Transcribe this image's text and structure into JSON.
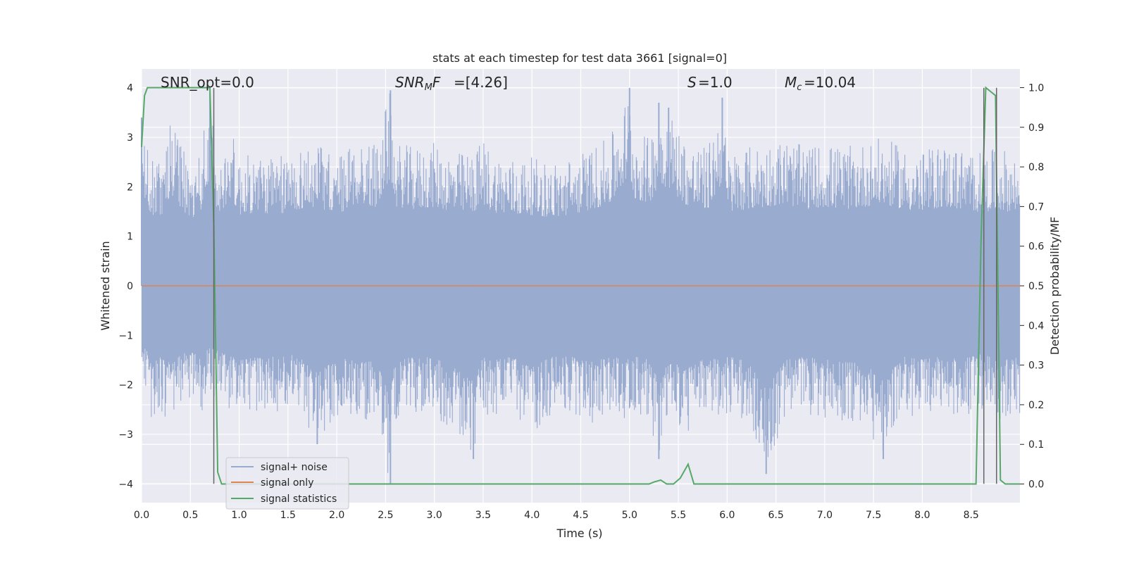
{
  "chart_data": {
    "type": "line",
    "title": "stats at each timestep for test data 3661 [signal=0]",
    "xlabel": "Time (s)",
    "ylabel_left": "Whitened strain",
    "ylabel_right": "Detection probability/MF",
    "xlim": [
      0.0,
      9.0
    ],
    "ylim_left": [
      -4.38,
      4.38
    ],
    "ylim_right": [
      -0.047,
      1.047
    ],
    "x_ticks": [
      "0.0",
      "0.5",
      "1.0",
      "1.5",
      "2.0",
      "2.5",
      "3.0",
      "3.5",
      "4.0",
      "4.5",
      "5.0",
      "5.5",
      "6.0",
      "6.5",
      "7.0",
      "7.5",
      "8.0",
      "8.5"
    ],
    "x_tick_values": [
      0.0,
      0.5,
      1.0,
      1.5,
      2.0,
      2.5,
      3.0,
      3.5,
      4.0,
      4.5,
      5.0,
      5.5,
      6.0,
      6.5,
      7.0,
      7.5,
      8.0,
      8.5
    ],
    "y_left_ticks": [
      "−4",
      "−3",
      "−2",
      "−1",
      "0",
      "1",
      "2",
      "3",
      "4"
    ],
    "y_left_tick_values": [
      -4,
      -3,
      -2,
      -1,
      0,
      1,
      2,
      3,
      4
    ],
    "y_right_ticks": [
      "0.0",
      "0.1",
      "0.2",
      "0.3",
      "0.4",
      "0.5",
      "0.6",
      "0.7",
      "0.8",
      "0.9",
      "1.0"
    ],
    "y_right_tick_values": [
      0.0,
      0.1,
      0.2,
      0.3,
      0.4,
      0.5,
      0.6,
      0.7,
      0.8,
      0.9,
      1.0
    ],
    "grid": true,
    "annotations": {
      "snr_opt": "SNR_opt=0.0",
      "snr_mf": "=[4.26]",
      "s_stat": "=1.0",
      "mc": "=10.04"
    },
    "legend": {
      "position": "lower-left",
      "entries": [
        "signal+ noise",
        "signal only",
        "signal statistics"
      ]
    },
    "colors": {
      "background": "#eaeaf2",
      "grid": "#ffffff",
      "noise": "#9aabd0",
      "signal_only": "#dd8452",
      "statistics": "#55a868",
      "vlines": "#666666"
    },
    "series": [
      {
        "name": "signal+ noise",
        "axis": "left",
        "envelope": {
          "x": [
            0.0,
            0.1,
            0.2,
            0.3,
            0.4,
            0.5,
            0.6,
            0.7,
            0.8,
            0.9,
            1.0,
            1.2,
            1.4,
            1.6,
            1.8,
            2.0,
            2.2,
            2.4,
            2.55,
            2.6,
            2.8,
            3.0,
            3.2,
            3.4,
            3.5,
            3.6,
            3.8,
            4.0,
            4.2,
            4.4,
            4.6,
            4.8,
            5.0,
            5.05,
            5.2,
            5.3,
            5.4,
            5.6,
            5.8,
            5.95,
            6.0,
            6.2,
            6.4,
            6.6,
            6.8,
            7.0,
            7.2,
            7.4,
            7.6,
            7.8,
            8.0,
            8.2,
            8.4,
            8.6,
            8.8,
            9.0
          ],
          "upper": [
            3.4,
            2.6,
            2.5,
            3.3,
            2.9,
            2.4,
            2.7,
            3.9,
            2.4,
            3.3,
            2.6,
            2.7,
            2.6,
            2.8,
            2.9,
            2.6,
            3.0,
            2.9,
            3.95,
            2.9,
            2.8,
            2.9,
            2.7,
            2.7,
            3.0,
            2.7,
            2.6,
            2.6,
            2.5,
            2.6,
            2.8,
            3.0,
            4.0,
            3.2,
            3.0,
            3.7,
            3.6,
            2.9,
            2.8,
            3.8,
            2.7,
            2.8,
            2.9,
            3.0,
            2.8,
            2.9,
            2.8,
            2.9,
            3.0,
            2.8,
            2.7,
            2.9,
            2.8,
            2.7,
            2.8,
            2.6
          ],
          "lower": [
            -2.0,
            -2.7,
            -2.6,
            -2.8,
            -2.5,
            -2.4,
            -2.6,
            -2.2,
            -2.4,
            -2.5,
            -2.7,
            -2.6,
            -2.6,
            -2.5,
            -3.2,
            -2.7,
            -2.6,
            -2.8,
            -4.0,
            -2.7,
            -2.6,
            -2.6,
            -3.0,
            -3.5,
            -2.6,
            -2.7,
            -2.6,
            -3.0,
            -2.6,
            -2.6,
            -2.8,
            -2.6,
            -2.7,
            -2.6,
            -2.7,
            -3.5,
            -2.8,
            -3.0,
            -2.6,
            -2.7,
            -2.6,
            -2.7,
            -3.8,
            -2.7,
            -2.6,
            -2.7,
            -2.8,
            -2.8,
            -3.5,
            -2.6,
            -2.7,
            -2.6,
            -2.7,
            -2.5,
            -2.7,
            -2.6
          ]
        }
      },
      {
        "name": "signal only",
        "axis": "left",
        "x": [
          0.0,
          9.0
        ],
        "y": [
          0.0,
          0.0
        ]
      },
      {
        "name": "signal statistics",
        "axis": "right",
        "x": [
          0.0,
          0.03,
          0.06,
          0.1,
          0.15,
          0.2,
          0.5,
          0.7,
          0.74,
          0.78,
          0.82,
          0.9,
          1.0,
          2.0,
          3.0,
          4.0,
          5.0,
          5.2,
          5.25,
          5.32,
          5.38,
          5.45,
          5.52,
          5.6,
          5.66,
          6.0,
          7.0,
          8.0,
          8.55,
          8.6,
          8.65,
          8.7,
          8.75,
          8.8,
          8.85,
          8.9,
          9.0
        ],
        "y": [
          0.85,
          0.98,
          1.0,
          1.0,
          1.0,
          1.0,
          1.0,
          1.0,
          0.65,
          0.03,
          0.0,
          0.0,
          0.0,
          0.0,
          0.0,
          0.0,
          0.0,
          0.0,
          0.005,
          0.01,
          0.0,
          0.0,
          0.015,
          0.05,
          0.0,
          0.0,
          0.0,
          0.0,
          0.0,
          0.6,
          1.0,
          0.99,
          0.98,
          0.01,
          0.0,
          0.0,
          0.0
        ]
      }
    ],
    "vertical_markers": [
      0.74,
      8.63,
      8.76
    ]
  }
}
